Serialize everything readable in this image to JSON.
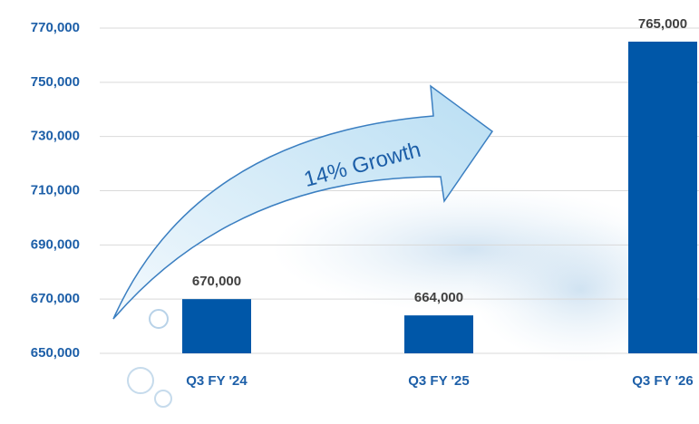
{
  "chart_data": {
    "type": "bar",
    "categories": [
      "Q3 FY '24",
      "Q3 FY '25",
      "Q3 FY '26"
    ],
    "values": [
      670000,
      664000,
      765000
    ],
    "value_labels": [
      "670,000",
      "664,000",
      "765,000"
    ],
    "color": "#0057a8",
    "ylim": [
      650000,
      770000
    ],
    "yticks": [
      {
        "value": 650000,
        "label": "650,000"
      },
      {
        "value": 670000,
        "label": "670,000"
      },
      {
        "value": 690000,
        "label": "690,000"
      },
      {
        "value": 710000,
        "label": "710,000"
      },
      {
        "value": 730000,
        "label": "730,000"
      },
      {
        "value": 750000,
        "label": "750,000"
      },
      {
        "value": 770000,
        "label": "770,000"
      }
    ],
    "grid": true,
    "annotation": "14% Growth"
  }
}
